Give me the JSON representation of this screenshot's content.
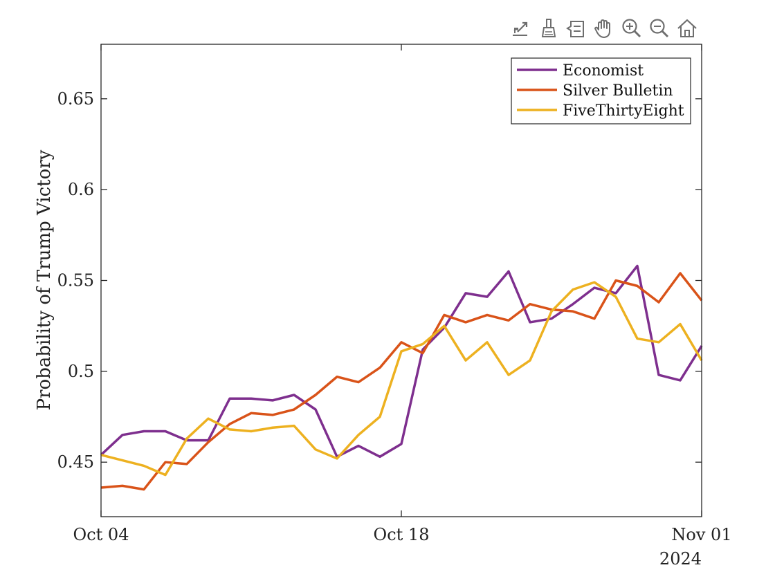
{
  "toolbar": {
    "icons": [
      "export-icon",
      "brush-icon",
      "datatip-icon",
      "pan-icon",
      "zoom-in-icon",
      "zoom-out-icon",
      "home-icon"
    ],
    "icon_color": "#6e6e6e"
  },
  "chart_data": {
    "type": "line",
    "ylabel": "Probability of Trump Victory",
    "xlabel": "",
    "x_tick_labels": [
      "Oct 04",
      "Oct 18",
      "Nov 01"
    ],
    "x_secondary_label": "2024",
    "y_tick_labels": [
      "0.45",
      "0.5",
      "0.55",
      "0.6",
      "0.65"
    ],
    "x_range": [
      "2024-10-04",
      "2024-11-01"
    ],
    "ylim": [
      0.42,
      0.68
    ],
    "x": [
      "2024-10-04",
      "2024-10-05",
      "2024-10-06",
      "2024-10-07",
      "2024-10-08",
      "2024-10-09",
      "2024-10-10",
      "2024-10-11",
      "2024-10-12",
      "2024-10-13",
      "2024-10-14",
      "2024-10-15",
      "2024-10-16",
      "2024-10-17",
      "2024-10-18",
      "2024-10-19",
      "2024-10-20",
      "2024-10-21",
      "2024-10-22",
      "2024-10-23",
      "2024-10-24",
      "2024-10-25",
      "2024-10-26",
      "2024-10-27",
      "2024-10-28",
      "2024-10-29",
      "2024-10-30",
      "2024-10-31",
      "2024-11-01"
    ],
    "series": [
      {
        "name": "Economist",
        "color": "#7e2f8e",
        "values": [
          0.454,
          0.465,
          0.467,
          0.467,
          0.462,
          0.462,
          0.485,
          0.485,
          0.484,
          0.487,
          0.479,
          0.453,
          0.459,
          0.453,
          0.46,
          0.512,
          0.524,
          0.543,
          0.541,
          0.555,
          0.527,
          0.529,
          0.537,
          0.546,
          0.543,
          0.558,
          0.498,
          0.495,
          0.514
        ]
      },
      {
        "name": "Silver Bulletin",
        "color": "#d95319",
        "values": [
          0.436,
          0.437,
          0.435,
          0.45,
          0.449,
          0.461,
          0.471,
          0.477,
          0.476,
          0.479,
          0.487,
          0.497,
          0.494,
          0.502,
          0.516,
          0.51,
          0.531,
          0.527,
          0.531,
          0.528,
          0.537,
          0.534,
          0.533,
          0.529,
          0.55,
          0.547,
          0.538,
          0.554,
          0.539
        ]
      },
      {
        "name": "FiveThirtyEight",
        "color": "#edb120",
        "values": [
          0.454,
          0.451,
          0.448,
          0.443,
          0.463,
          0.474,
          0.468,
          0.467,
          0.469,
          0.47,
          0.457,
          0.452,
          0.465,
          0.475,
          0.511,
          0.515,
          0.525,
          0.506,
          0.516,
          0.498,
          0.506,
          0.533,
          0.545,
          0.549,
          0.541,
          0.518,
          0.516,
          0.526,
          0.506
        ]
      }
    ],
    "legend_position": "top-right",
    "grid": false
  }
}
